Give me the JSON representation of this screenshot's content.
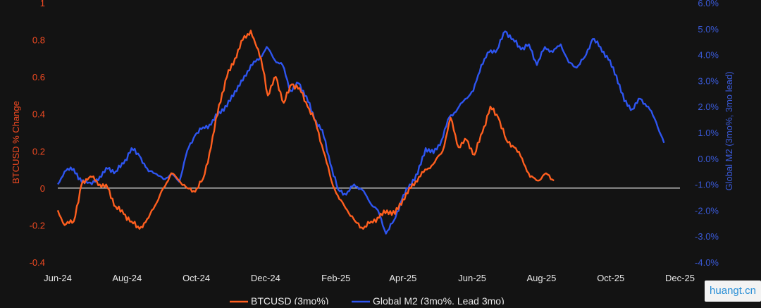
{
  "chart_data": {
    "type": "line",
    "title": "",
    "xlabel": "",
    "ylabel_left": "BTCUSD % Change",
    "ylabel_right": "Global M2 (3mo%, 3mo lead)",
    "x_ticks": [
      "Jun-24",
      "Aug-24",
      "Oct-24",
      "Dec-24",
      "Feb-25",
      "Apr-25",
      "Jun-25",
      "Aug-25",
      "Oct-25",
      "Dec-25"
    ],
    "ylim_left": [
      -0.4,
      1.0
    ],
    "yticks_left": [
      "-0.4",
      "-0.2",
      "0",
      "0.2",
      "0.4",
      "0.6",
      "0.8",
      "1"
    ],
    "ylim_right": [
      -4.0,
      6.0
    ],
    "yticks_right": [
      "-4.0%",
      "-3.0%",
      "-2.0%",
      "-1.0%",
      "0.0%",
      "1.0%",
      "2.0%",
      "3.0%",
      "4.0%",
      "5.0%",
      "6.0%"
    ],
    "zero_line": 0,
    "grid": false,
    "legend_position": "bottom-center",
    "colors": {
      "btc": "#ff5f1f",
      "m2": "#2e55f0",
      "left_axis_text": "#f04a22",
      "right_axis_text": "#3a5ad8",
      "tick_text": "#e8e8e8",
      "background": "#131313"
    },
    "series": [
      {
        "name": "BTCUSD (3mo%)",
        "axis": "left",
        "color": "#ff5f1f",
        "x": [
          "2024-06-01",
          "2024-06-07",
          "2024-06-15",
          "2024-06-22",
          "2024-07-01",
          "2024-07-08",
          "2024-07-15",
          "2024-07-22",
          "2024-07-29",
          "2024-08-05",
          "2024-08-12",
          "2024-08-20",
          "2024-08-27",
          "2024-09-02",
          "2024-09-09",
          "2024-09-16",
          "2024-09-23",
          "2024-09-30",
          "2024-10-07",
          "2024-10-14",
          "2024-10-21",
          "2024-10-28",
          "2024-11-04",
          "2024-11-11",
          "2024-11-18",
          "2024-11-22",
          "2024-11-27",
          "2024-12-03",
          "2024-12-10",
          "2024-12-17",
          "2024-12-24",
          "2024-12-31",
          "2025-01-07",
          "2025-01-14",
          "2025-01-21",
          "2025-01-28",
          "2025-02-04",
          "2025-02-11",
          "2025-02-18",
          "2025-02-25",
          "2025-03-04",
          "2025-03-11",
          "2025-03-18",
          "2025-03-25",
          "2025-04-01",
          "2025-04-08",
          "2025-04-15",
          "2025-04-22",
          "2025-04-29",
          "2025-05-06",
          "2025-05-13",
          "2025-05-20",
          "2025-05-27",
          "2025-06-03",
          "2025-06-10",
          "2025-06-17",
          "2025-06-24",
          "2025-07-01",
          "2025-07-08",
          "2025-07-15",
          "2025-07-22",
          "2025-07-29",
          "2025-08-05",
          "2025-08-12"
        ],
        "values": [
          -0.12,
          -0.2,
          -0.18,
          0.02,
          0.06,
          0.02,
          0.0,
          -0.1,
          -0.14,
          -0.18,
          -0.22,
          -0.16,
          -0.08,
          0.0,
          0.08,
          0.04,
          0.0,
          -0.02,
          0.05,
          0.22,
          0.45,
          0.6,
          0.7,
          0.8,
          0.85,
          0.78,
          0.7,
          0.5,
          0.6,
          0.46,
          0.56,
          0.54,
          0.44,
          0.36,
          0.2,
          0.04,
          -0.06,
          -0.12,
          -0.18,
          -0.22,
          -0.18,
          -0.16,
          -0.12,
          -0.14,
          -0.06,
          0.0,
          0.06,
          0.1,
          0.14,
          0.2,
          0.38,
          0.22,
          0.26,
          0.18,
          0.3,
          0.44,
          0.38,
          0.26,
          0.22,
          0.16,
          0.06,
          0.04,
          0.08,
          0.04
        ]
      },
      {
        "name": "Global M2 (3mo%, Lead 3mo)",
        "axis": "right",
        "color": "#2e55f0",
        "x": [
          "2024-06-01",
          "2024-06-07",
          "2024-06-15",
          "2024-06-22",
          "2024-07-01",
          "2024-07-08",
          "2024-07-15",
          "2024-07-22",
          "2024-07-29",
          "2024-08-05",
          "2024-08-12",
          "2024-08-20",
          "2024-08-27",
          "2024-09-02",
          "2024-09-09",
          "2024-09-16",
          "2024-09-23",
          "2024-09-30",
          "2024-10-07",
          "2024-10-14",
          "2024-10-21",
          "2024-10-28",
          "2024-11-04",
          "2024-11-11",
          "2024-11-18",
          "2024-11-25",
          "2024-12-02",
          "2024-12-09",
          "2024-12-16",
          "2024-12-23",
          "2024-12-30",
          "2025-01-06",
          "2025-01-13",
          "2025-01-20",
          "2025-01-27",
          "2025-02-03",
          "2025-02-10",
          "2025-02-17",
          "2025-02-24",
          "2025-03-03",
          "2025-03-10",
          "2025-03-17",
          "2025-03-24",
          "2025-03-31",
          "2025-04-07",
          "2025-04-14",
          "2025-04-21",
          "2025-04-28",
          "2025-05-05",
          "2025-05-12",
          "2025-05-19",
          "2025-05-26",
          "2025-06-02",
          "2025-06-09",
          "2025-06-16",
          "2025-06-23",
          "2025-06-30",
          "2025-07-07",
          "2025-07-14",
          "2025-07-21",
          "2025-07-28",
          "2025-08-04",
          "2025-08-11",
          "2025-08-18",
          "2025-08-25",
          "2025-09-01",
          "2025-09-08",
          "2025-09-15",
          "2025-09-22",
          "2025-09-29",
          "2025-10-06",
          "2025-10-13",
          "2025-10-20",
          "2025-10-27",
          "2025-11-03",
          "2025-11-10",
          "2025-11-17"
        ],
        "values": [
          -1.0,
          -0.5,
          -0.4,
          -0.9,
          -1.0,
          -0.7,
          -0.4,
          -0.5,
          -0.2,
          0.4,
          0.1,
          -0.5,
          -0.6,
          -0.8,
          -0.6,
          -0.9,
          0.3,
          0.9,
          1.2,
          1.3,
          1.8,
          2.0,
          2.6,
          3.0,
          3.6,
          3.8,
          4.3,
          3.8,
          3.6,
          2.6,
          2.9,
          2.4,
          1.5,
          1.1,
          -0.2,
          -1.2,
          -1.4,
          -1.0,
          -1.2,
          -1.7,
          -2.0,
          -2.9,
          -2.4,
          -1.6,
          -1.0,
          -0.6,
          0.4,
          0.2,
          0.7,
          1.6,
          1.9,
          2.3,
          2.6,
          3.6,
          4.1,
          4.2,
          4.9,
          4.6,
          4.2,
          4.4,
          3.6,
          4.3,
          4.1,
          4.4,
          3.7,
          3.5,
          3.9,
          4.6,
          4.3,
          3.8,
          3.2,
          2.2,
          1.9,
          2.3,
          2.0,
          1.4,
          0.6
        ]
      }
    ]
  }
}
